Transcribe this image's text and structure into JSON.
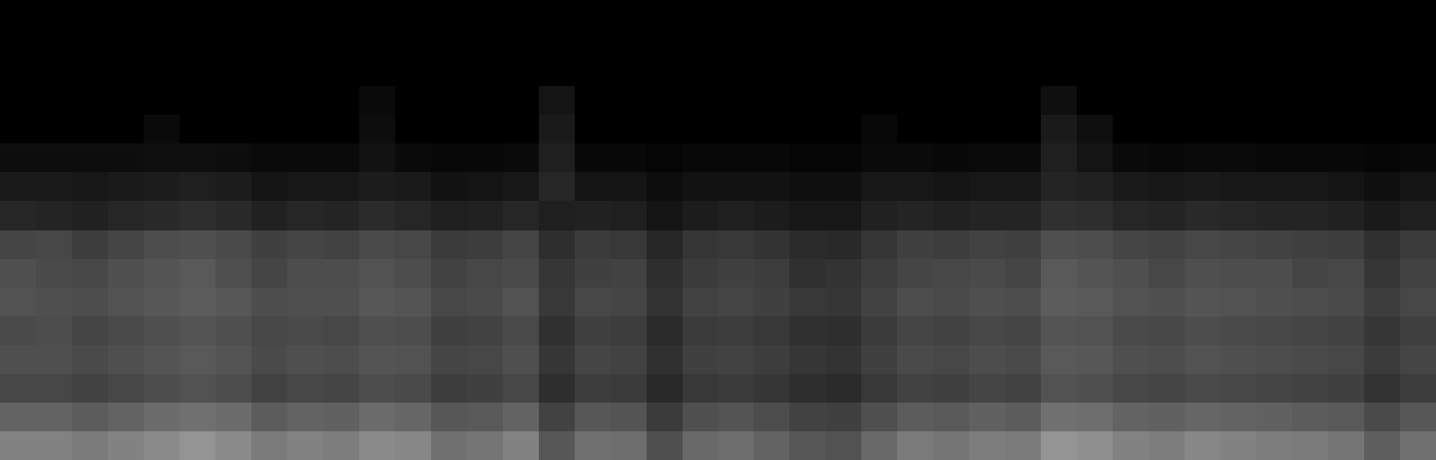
{
  "chart_data": {
    "type": "heatmap",
    "tick_labels": false,
    "zlim": [
      0,
      100
    ],
    "cells": [
      [
        0,
        0,
        0,
        0,
        0,
        0,
        0,
        0,
        0,
        0,
        0,
        0,
        0,
        0,
        0,
        0,
        0,
        0,
        0,
        0,
        0,
        0,
        0,
        0,
        0,
        0,
        0,
        0,
        0,
        0,
        0,
        0,
        0,
        0,
        0,
        0,
        0,
        0,
        0,
        0
      ],
      [
        0,
        0,
        0,
        0,
        0,
        0,
        0,
        0,
        0,
        0,
        0,
        0,
        0,
        0,
        0,
        0,
        0,
        0,
        0,
        0,
        0,
        0,
        0,
        0,
        0,
        0,
        0,
        0,
        0,
        0,
        0,
        0,
        0,
        0,
        0,
        0,
        0,
        0,
        0,
        0
      ],
      [
        0,
        0,
        0,
        0,
        0,
        0,
        0,
        0,
        0,
        0,
        0,
        0,
        0,
        0,
        0,
        0,
        0,
        0,
        0,
        0,
        0,
        0,
        0,
        0,
        0,
        0,
        0,
        0,
        0,
        0,
        0,
        0,
        0,
        0,
        0,
        0,
        0,
        0,
        0,
        0
      ],
      [
        0,
        0,
        0,
        0,
        0,
        0,
        0,
        0,
        0,
        0,
        4,
        0,
        0,
        0,
        0,
        8,
        0,
        0,
        0,
        0,
        0,
        0,
        0,
        0,
        0,
        0,
        0,
        0,
        0,
        6,
        0,
        0,
        0,
        0,
        0,
        0,
        0,
        0,
        0,
        0
      ],
      [
        0,
        0,
        0,
        0,
        4,
        0,
        0,
        0,
        0,
        0,
        5,
        0,
        0,
        0,
        0,
        10,
        0,
        0,
        0,
        0,
        0,
        0,
        0,
        0,
        3,
        0,
        0,
        0,
        0,
        10,
        6,
        0,
        0,
        0,
        0,
        0,
        0,
        0,
        0,
        0
      ],
      [
        5,
        5,
        5,
        5,
        6,
        6,
        5,
        4,
        4,
        4,
        7,
        4,
        3,
        3,
        4,
        12,
        3,
        3,
        2,
        3,
        3,
        3,
        2,
        2,
        4,
        4,
        3,
        4,
        4,
        12,
        8,
        4,
        3,
        4,
        4,
        3,
        3,
        3,
        2,
        3
      ],
      [
        10,
        10,
        9,
        10,
        11,
        12,
        11,
        8,
        9,
        9,
        11,
        10,
        7,
        8,
        9,
        15,
        8,
        8,
        5,
        7,
        7,
        7,
        6,
        6,
        9,
        9,
        8,
        9,
        9,
        14,
        13,
        10,
        9,
        10,
        9,
        9,
        9,
        8,
        6,
        8
      ],
      [
        15,
        14,
        13,
        15,
        16,
        18,
        16,
        13,
        15,
        14,
        17,
        15,
        12,
        13,
        15,
        12,
        13,
        12,
        8,
        11,
        12,
        11,
        9,
        9,
        13,
        14,
        13,
        14,
        14,
        19,
        18,
        15,
        14,
        16,
        15,
        14,
        14,
        13,
        10,
        12
      ],
      [
        27,
        28,
        24,
        27,
        30,
        31,
        29,
        25,
        27,
        26,
        29,
        28,
        23,
        24,
        27,
        18,
        23,
        22,
        15,
        21,
        22,
        20,
        17,
        16,
        21,
        25,
        24,
        26,
        25,
        31,
        30,
        27,
        26,
        28,
        27,
        26,
        25,
        24,
        19,
        23
      ],
      [
        31,
        29,
        28,
        31,
        33,
        35,
        31,
        27,
        30,
        30,
        32,
        30,
        26,
        28,
        29,
        21,
        25,
        26,
        18,
        23,
        25,
        24,
        19,
        20,
        24,
        27,
        28,
        29,
        27,
        35,
        33,
        31,
        28,
        31,
        30,
        30,
        27,
        28,
        21,
        26
      ],
      [
        32,
        31,
        30,
        32,
        34,
        36,
        34,
        30,
        31,
        31,
        34,
        33,
        28,
        29,
        32,
        22,
        28,
        27,
        20,
        26,
        27,
        25,
        22,
        21,
        26,
        30,
        29,
        31,
        30,
        36,
        35,
        32,
        31,
        33,
        32,
        31,
        30,
        29,
        24,
        28
      ],
      [
        29,
        30,
        27,
        29,
        31,
        33,
        31,
        28,
        29,
        28,
        31,
        30,
        25,
        26,
        29,
        19,
        25,
        24,
        17,
        23,
        24,
        22,
        19,
        18,
        23,
        27,
        26,
        28,
        27,
        33,
        32,
        29,
        28,
        30,
        29,
        28,
        27,
        26,
        21,
        25
      ],
      [
        31,
        31,
        29,
        31,
        33,
        35,
        33,
        29,
        31,
        30,
        33,
        32,
        27,
        28,
        31,
        21,
        27,
        26,
        19,
        25,
        26,
        24,
        21,
        20,
        25,
        29,
        28,
        30,
        29,
        35,
        34,
        31,
        30,
        32,
        31,
        30,
        29,
        28,
        23,
        27
      ],
      [
        28,
        28,
        26,
        28,
        30,
        32,
        30,
        26,
        28,
        27,
        30,
        29,
        24,
        25,
        28,
        18,
        24,
        23,
        16,
        22,
        23,
        21,
        18,
        17,
        22,
        26,
        25,
        27,
        26,
        32,
        31,
        28,
        27,
        29,
        28,
        27,
        26,
        25,
        20,
        24
      ],
      [
        39,
        39,
        36,
        39,
        42,
        44,
        42,
        36,
        39,
        38,
        42,
        40,
        34,
        35,
        39,
        26,
        34,
        33,
        23,
        31,
        33,
        30,
        26,
        25,
        31,
        36,
        35,
        38,
        36,
        44,
        43,
        39,
        38,
        40,
        39,
        38,
        36,
        35,
        29,
        34
      ],
      [
        51,
        51,
        48,
        51,
        54,
        58,
        54,
        48,
        51,
        49,
        54,
        53,
        44,
        46,
        51,
        34,
        44,
        43,
        31,
        41,
        43,
        39,
        34,
        32,
        41,
        48,
        46,
        49,
        48,
        58,
        56,
        51,
        49,
        53,
        51,
        49,
        48,
        46,
        37,
        44
      ]
    ]
  }
}
